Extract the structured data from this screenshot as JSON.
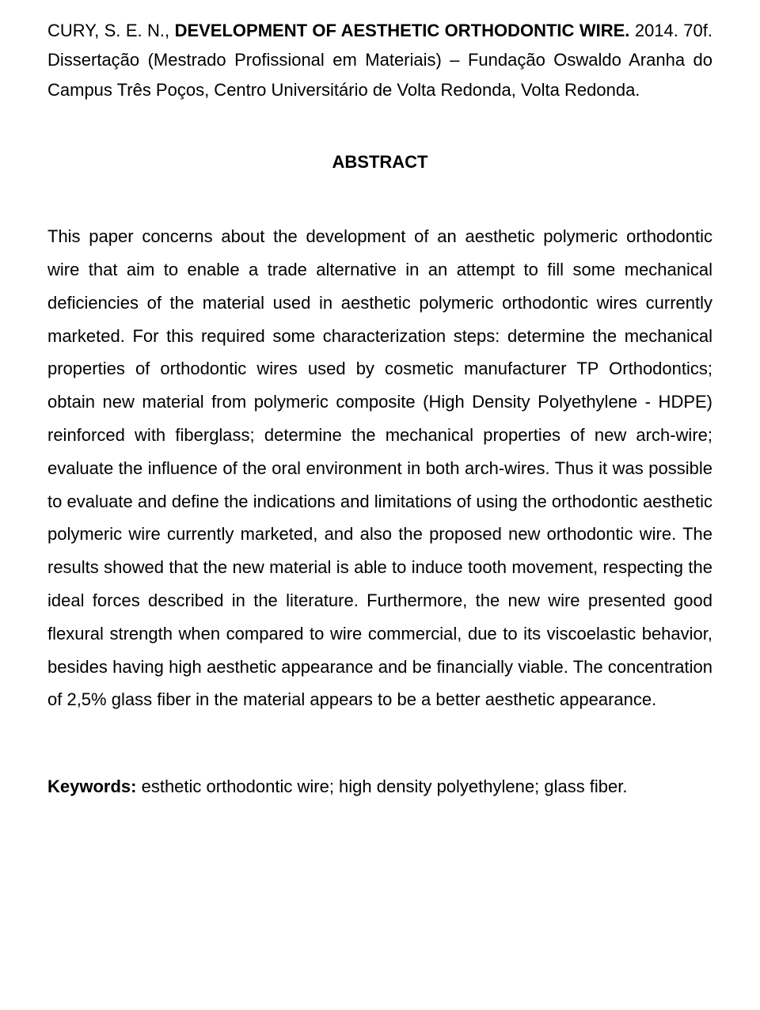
{
  "citation": {
    "author": "CURY, S. E. N., ",
    "title": "DEVELOPMENT OF AESTHETIC ORTHODONTIC WIRE. ",
    "rest": "2014. 70f. Dissertação (Mestrado Profissional em Materiais) – Fundação Oswaldo Aranha do Campus Três Poços, Centro Universitário de Volta Redonda, Volta Redonda."
  },
  "abstract": {
    "heading": "ABSTRACT",
    "body": "This paper concerns about the development of an aesthetic polymeric orthodontic wire that aim to enable a trade alternative in an attempt to fill some mechanical deficiencies of the material used in aesthetic polymeric orthodontic wires currently marketed. For this required some characterization steps: determine the mechanical properties of orthodontic wires used by cosmetic manufacturer TP Orthodontics; obtain new material from polymeric composite (High Density Polyethylene - HDPE) reinforced with fiberglass; determine the mechanical properties of new arch-wire; evaluate the influence of the oral environment in both arch-wires. Thus it was possible to evaluate and define the indications and limitations of using the orthodontic aesthetic polymeric wire currently marketed, and also the proposed new orthodontic wire. The results showed that the new material is able to induce tooth movement, respecting the ideal forces described in the literature. Furthermore, the new wire presented good flexural strength when compared to wire commercial, due to its viscoelastic behavior, besides having high aesthetic appearance and be financially viable. The concentration of 2,5% glass fiber in the material appears to be a better aesthetic appearance."
  },
  "keywords": {
    "label": "Keywords: ",
    "text": "esthetic orthodontic wire; high density polyethylene; glass fiber."
  }
}
